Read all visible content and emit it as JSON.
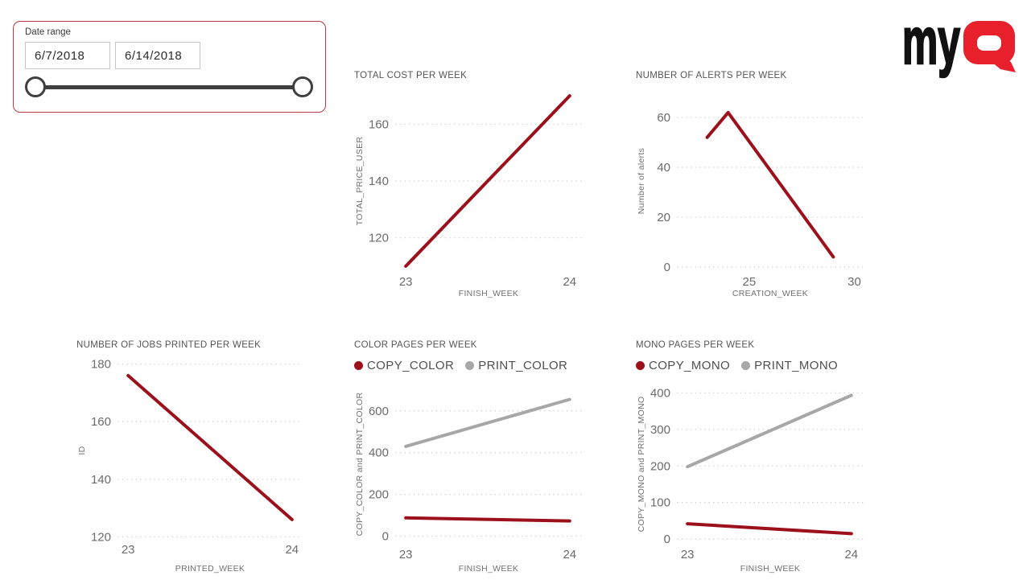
{
  "slicer": {
    "label": "Date range",
    "start_date": "6/7/2018",
    "end_date": "6/14/2018"
  },
  "logo": {
    "my": "my",
    "q": "Q",
    "color_black": "#111111",
    "color_red": "#e8202b"
  },
  "colors": {
    "line_red": "#9c101b",
    "line_gray": "#a7a7a7",
    "grid": "#c9c9c9",
    "slicer_border": "#b83b44"
  },
  "chart_data": [
    {
      "type": "line",
      "title": "TOTAL COST PER WEEK",
      "xlabel": "FINISH_WEEK",
      "ylabel": "TOTAL_PRICE_USER",
      "xlim": [
        22.94,
        24.07
      ],
      "ylim": [
        108,
        172
      ],
      "xticks": [
        23,
        24
      ],
      "yticks": [
        120,
        140,
        160
      ],
      "grid": "dotted-horizontal",
      "legend": false,
      "series": [
        {
          "name": "TOTAL_PRICE_USER",
          "color": "#9c101b",
          "points": [
            [
              23,
              110
            ],
            [
              24,
              170
            ]
          ]
        }
      ]
    },
    {
      "type": "line",
      "title": "NUMBER OF ALERTS PER WEEK",
      "xlabel": "CREATION_WEEK",
      "ylabel": "Number of alerts",
      "xlim": [
        21.6,
        30.4
      ],
      "ylim": [
        -2,
        71
      ],
      "xticks": [
        25,
        30
      ],
      "yticks": [
        0,
        20,
        40,
        60
      ],
      "grid": "dotted-horizontal",
      "legend": false,
      "series": [
        {
          "name": "Number of alerts",
          "color": "#9c101b",
          "points": [
            [
              23,
              52
            ],
            [
              24,
              62
            ],
            [
              29,
              4
            ]
          ]
        }
      ]
    },
    {
      "type": "line",
      "title": "NUMBER OF JOBS PRINTED PER WEEK",
      "xlabel": "PRINTED_WEEK",
      "ylabel": "ID",
      "xlim": [
        22.94,
        24.06
      ],
      "ylim": [
        119,
        181
      ],
      "xticks": [
        23,
        24
      ],
      "yticks": [
        120,
        140,
        160,
        180
      ],
      "grid": "dotted-horizontal",
      "legend": false,
      "series": [
        {
          "name": "ID",
          "color": "#9c101b",
          "points": [
            [
              23,
              176
            ],
            [
              24,
              126
            ]
          ]
        }
      ]
    },
    {
      "type": "line",
      "title": "COLOR PAGES PER WEEK",
      "xlabel": "FINISH_WEEK",
      "ylabel": "COPY_COLOR and PRINT_COLOR",
      "xlim": [
        22.94,
        24.07
      ],
      "ylim": [
        -40,
        730
      ],
      "xticks": [
        23,
        24
      ],
      "yticks": [
        0,
        200,
        400,
        600
      ],
      "grid": "dotted-horizontal",
      "legend": true,
      "series": [
        {
          "name": "COPY_COLOR",
          "color": "#9c101b",
          "points": [
            [
              23,
              88
            ],
            [
              24,
              73
            ]
          ]
        },
        {
          "name": "PRINT_COLOR",
          "color": "#a7a7a7",
          "points": [
            [
              23,
              430
            ],
            [
              24,
              655
            ]
          ]
        }
      ]
    },
    {
      "type": "line",
      "title": "MONO PAGES PER WEEK",
      "xlabel": "FINISH_WEEK",
      "ylabel": "COPY_MONO and PRINT_MONO",
      "xlim": [
        22.94,
        24.07
      ],
      "ylim": [
        -15,
        425
      ],
      "xticks": [
        23,
        24
      ],
      "yticks": [
        0,
        100,
        200,
        300,
        400
      ],
      "grid": "dotted-horizontal",
      "legend": true,
      "series": [
        {
          "name": "COPY_MONO",
          "color": "#9c101b",
          "points": [
            [
              23,
              42
            ],
            [
              24,
              15
            ]
          ]
        },
        {
          "name": "PRINT_MONO",
          "color": "#a7a7a7",
          "points": [
            [
              23,
              198
            ],
            [
              24,
              393
            ]
          ]
        }
      ]
    }
  ]
}
